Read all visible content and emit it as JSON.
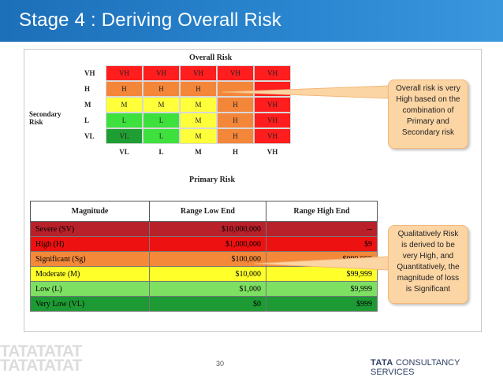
{
  "slide": {
    "title": "Stage 4 : Deriving Overall Risk",
    "page_number": "30",
    "brand_bold": "TATA",
    "brand_rest": " CONSULTANCY SERVICES",
    "watermark_text": "TATATATAT"
  },
  "matrix": {
    "title": "Overall Risk",
    "x_axis_label": "Primary Risk",
    "y_axis_label": "Secondary Risk",
    "row_labels": [
      "VH",
      "H",
      "M",
      "L",
      "VL"
    ],
    "col_labels": [
      "VL",
      "L",
      "M",
      "H",
      "VH"
    ],
    "rows": [
      [
        {
          "t": "VH",
          "c": "#ff1d1d"
        },
        {
          "t": "VH",
          "c": "#ff1d1d"
        },
        {
          "t": "VH",
          "c": "#ff1d1d"
        },
        {
          "t": "VH",
          "c": "#ff1d1d"
        },
        {
          "t": "VH",
          "c": "#ff1d1d"
        }
      ],
      [
        {
          "t": "H",
          "c": "#f4863a"
        },
        {
          "t": "H",
          "c": "#f4863a"
        },
        {
          "t": "H",
          "c": "#f4863a"
        },
        {
          "t": "",
          "c": "#f4863a"
        },
        {
          "t": "",
          "c": "#ff1d1d"
        }
      ],
      [
        {
          "t": "M",
          "c": "#ffff3a"
        },
        {
          "t": "M",
          "c": "#ffff3a"
        },
        {
          "t": "M",
          "c": "#ffff3a"
        },
        {
          "t": "H",
          "c": "#f4863a"
        },
        {
          "t": "VH",
          "c": "#ff1d1d"
        }
      ],
      [
        {
          "t": "L",
          "c": "#3ee03e"
        },
        {
          "t": "L",
          "c": "#3ee03e"
        },
        {
          "t": "M",
          "c": "#ffff3a"
        },
        {
          "t": "H",
          "c": "#f4863a"
        },
        {
          "t": "VH",
          "c": "#ff1d1d"
        }
      ],
      [
        {
          "t": "VL",
          "c": "#1f9e33"
        },
        {
          "t": "L",
          "c": "#3ee03e"
        },
        {
          "t": "M",
          "c": "#ffff3a"
        },
        {
          "t": "H",
          "c": "#f4863a"
        },
        {
          "t": "VH",
          "c": "#ff1d1d"
        }
      ]
    ]
  },
  "magnitude_table": {
    "headers": [
      "Magnitude",
      "Range Low End",
      "Range High End"
    ],
    "rows": [
      {
        "magnitude": "Severe (SV)",
        "low": "$10,000,000",
        "high": "--",
        "color": "#b8202a"
      },
      {
        "magnitude": "High (H)",
        "low": "$1,000,000",
        "high": "$9",
        "color": "#ee1111"
      },
      {
        "magnitude": "Significant (Sg)",
        "low": "$100,000",
        "high": "$999,999",
        "color": "#f5893a"
      },
      {
        "magnitude": "Moderate (M)",
        "low": "$10,000",
        "high": "$99,999",
        "color": "#ffff2a"
      },
      {
        "magnitude": "Low (L)",
        "low": "$1,000",
        "high": "$9,999",
        "color": "#7ee062"
      },
      {
        "magnitude": "Very Low (VL)",
        "low": "$0",
        "high": "$999",
        "color": "#1d9a33"
      }
    ]
  },
  "callouts": [
    {
      "lines": [
        "Overall risk is very",
        "High based on the",
        "combination of",
        "Primary and",
        "Secondary risk"
      ]
    },
    {
      "lines": [
        "Qualitatively Risk",
        "is derived to be",
        "very High, and",
        "Quantitatively, the",
        "magnitude of loss",
        "is Significant"
      ]
    }
  ]
}
